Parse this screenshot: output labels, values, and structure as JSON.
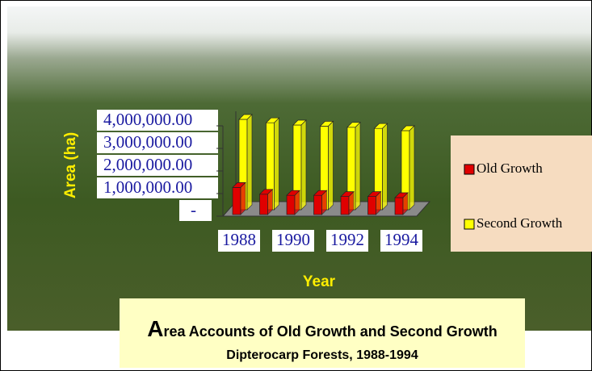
{
  "chart_data": {
    "type": "bar3d",
    "title": "Area Accounts of Old Growth and Second Growth",
    "subtitle": "Dipterocarp Forests, 1988-1994",
    "x_label": "Year",
    "y_label": "Area (ha)",
    "categories": [
      "1988",
      null,
      "1990",
      null,
      "1992",
      null,
      "1994"
    ],
    "series": [
      {
        "name": "Old Growth",
        "color": "#e00000",
        "values": [
          1200000,
          900000,
          850000,
          850000,
          800000,
          800000,
          750000
        ]
      },
      {
        "name": "Second Growth",
        "color": "#ffff00",
        "values": [
          4000000,
          3850000,
          3750000,
          3700000,
          3650000,
          3600000,
          3500000
        ]
      }
    ],
    "ylim": [
      0,
      4000000
    ],
    "yticks": [
      {
        "value": 0,
        "label": "-"
      },
      {
        "value": 1000000,
        "label": "1,000,000.00"
      },
      {
        "value": 2000000,
        "label": "2,000,000.00"
      },
      {
        "value": 3000000,
        "label": "3,000,000.00"
      },
      {
        "value": 4000000,
        "label": "4,000,000.00"
      }
    ],
    "legend": "right"
  }
}
